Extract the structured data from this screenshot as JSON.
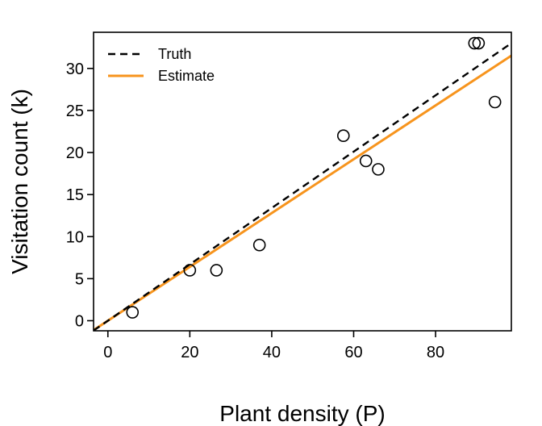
{
  "chart_data": {
    "type": "scatter",
    "xlabel": "Plant density (P)",
    "ylabel": "Visitation count (k)",
    "xlim": [
      -3.5,
      98.5
    ],
    "ylim": [
      -1.2,
      34.3
    ],
    "x_ticks": [
      0,
      20,
      40,
      60,
      80
    ],
    "y_ticks": [
      0,
      5,
      10,
      15,
      20,
      25,
      30
    ],
    "grid": false,
    "legend_position": "top-left",
    "points": {
      "x": [
        6,
        20,
        26.5,
        37,
        57.5,
        63,
        66,
        89.5,
        90.5,
        94.5
      ],
      "y": [
        1,
        6,
        6,
        9,
        22,
        19,
        18,
        33,
        33,
        26
      ]
    },
    "lines": [
      {
        "name": "Truth",
        "style": "dashed",
        "color": "#000000",
        "intercept": 0,
        "slope": 0.335
      },
      {
        "name": "Estimate",
        "style": "solid",
        "color": "#F7941D",
        "intercept": 0,
        "slope": 0.32
      }
    ]
  }
}
